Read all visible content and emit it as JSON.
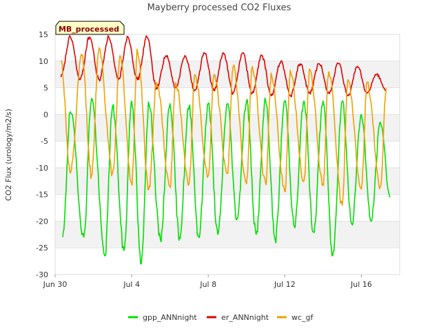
{
  "chart_data": {
    "type": "line",
    "title": "Mayberry processed CO2 Fluxes",
    "ylabel": "CO2 Flux (urology/m2/s)",
    "xlabel": "",
    "badge": "MB_processed",
    "ylim": [
      -30,
      15
    ],
    "y_ticks": [
      15,
      10,
      5,
      0,
      -5,
      -10,
      -15,
      -20,
      -25,
      -30
    ],
    "x_domain": [
      "Jun 30",
      "Jul 18"
    ],
    "x_ticks": [
      {
        "label": "Jun 30",
        "day": 0
      },
      {
        "label": "Jul 4",
        "day": 4
      },
      {
        "label": "Jul 8",
        "day": 8
      },
      {
        "label": "Jul 12",
        "day": 12
      },
      {
        "label": "Jul 16",
        "day": 16
      }
    ],
    "grid": true,
    "legend_position": "bottom",
    "series": [
      {
        "name": "gpp_ANNnight",
        "color": "#00dd00",
        "days_min": [
          0.4,
          1.5,
          2.6,
          3.6,
          4.5,
          5.5,
          6.5,
          7.5,
          8.5,
          9.5,
          10.5,
          11.5,
          12.5,
          13.5,
          14.5,
          15.5,
          16.5,
          17.5
        ],
        "days_max": [
          0.8,
          1.9,
          3.0,
          4.0,
          4.9,
          6.0,
          7.0,
          8.0,
          9.0,
          10.0,
          11.0,
          12.0,
          13.0,
          14.0,
          15.0,
          16.0,
          17.0
        ],
        "daily_min": [
          -23,
          -23,
          -26.5,
          -25.5,
          -28,
          -23.5,
          -23,
          -23,
          -22.5,
          -19.5,
          -22.5,
          -23.5,
          -21,
          -22,
          -26.5,
          -20.5,
          -20,
          -15.5
        ],
        "daily_max": [
          0.5,
          3,
          1.5,
          2.5,
          2,
          2,
          1.5,
          2,
          2,
          2.5,
          2.5,
          2.5,
          2.5,
          2.5,
          2.5,
          0,
          -1.5
        ]
      },
      {
        "name": "er_ANNnight",
        "color": "#dd0000",
        "days_min": [
          0.3,
          1.3,
          2.3,
          3.3,
          4.3,
          5.3,
          6.3,
          7.3,
          8.3,
          9.3,
          10.3,
          11.3,
          12.3,
          13.3,
          14.3,
          15.3,
          16.3,
          17.3
        ],
        "days_max": [
          0.8,
          1.8,
          2.8,
          3.8,
          4.8,
          5.8,
          6.8,
          7.8,
          8.8,
          9.8,
          10.8,
          11.8,
          12.8,
          13.8,
          14.8,
          15.8,
          16.8
        ],
        "daily_min": [
          7,
          6.5,
          6.5,
          6.5,
          6.5,
          5,
          5,
          4.5,
          4.5,
          4,
          4,
          3.5,
          3.5,
          4,
          4,
          3.5,
          4,
          4.5
        ],
        "daily_max": [
          14.5,
          14.5,
          14.5,
          14.5,
          14.5,
          11,
          11,
          11.5,
          11.5,
          11.5,
          11,
          10,
          9.5,
          9.5,
          9.5,
          9,
          7.5
        ]
      },
      {
        "name": "wc_gf",
        "color": "#f0a000",
        "days_min": [
          0.8,
          1.9,
          3.0,
          4.0,
          4.9,
          6.0,
          7.0,
          8.0,
          9.0,
          10.0,
          11.0,
          12.0,
          13.0,
          14.0,
          15.0,
          16.0,
          17.0
        ],
        "days_max": [
          0.3,
          1.4,
          2.3,
          3.4,
          4.3,
          5.3,
          6.3,
          7.3,
          8.3,
          9.3,
          10.3,
          11.3,
          12.3,
          13.3,
          14.3,
          15.3,
          16.3,
          17.3
        ],
        "daily_min": [
          -11,
          -11.5,
          -11,
          -13,
          -14,
          -13.5,
          -13,
          -11.5,
          -11,
          -13,
          -13,
          -14.5,
          -12.5,
          -13,
          -17,
          -14,
          -13.5
        ],
        "daily_max": [
          10,
          11,
          12.5,
          11,
          12,
          6,
          6,
          7.5,
          7.5,
          9,
          9,
          7.5,
          8,
          8.5,
          8,
          6.5,
          6,
          5
        ]
      }
    ]
  }
}
